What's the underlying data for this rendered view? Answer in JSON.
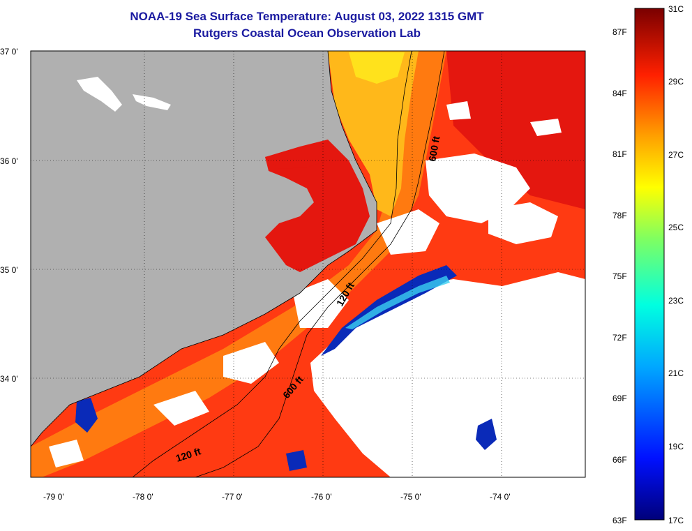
{
  "title": {
    "line1": "NOAA-19 Sea Surface Temperature:  August 03, 2022 1315 GMT",
    "line2": "Rutgers Coastal Ocean Observation Lab"
  },
  "colors": {
    "land": "#b0b0b0",
    "cloud": "#ffffff",
    "sea_warm": "#ff3a12",
    "sea_hot": "#e4170f",
    "sea_mid": "#ff7a10",
    "sea_yellow": "#ffd21a",
    "sea_cool": "#0a2ab8"
  },
  "axes": {
    "lat_ticks": [
      "37 0'",
      "36 0'",
      "35 0'",
      "34 0'"
    ],
    "lon_ticks": [
      "-79 0'",
      "-78 0'",
      "-77 0'",
      "-76 0'",
      "-75 0'",
      "-74 0'"
    ]
  },
  "contours": {
    "labels": [
      "600 ft",
      "120 ft",
      "600 ft",
      "120 ft"
    ]
  },
  "colorbar": {
    "celsius": [
      "31C",
      "29C",
      "27C",
      "25C",
      "23C",
      "21C",
      "19C",
      "17C"
    ],
    "fahrenheit": [
      "87F",
      "84F",
      "81F",
      "78F",
      "75F",
      "72F",
      "69F",
      "66F",
      "63F"
    ]
  }
}
